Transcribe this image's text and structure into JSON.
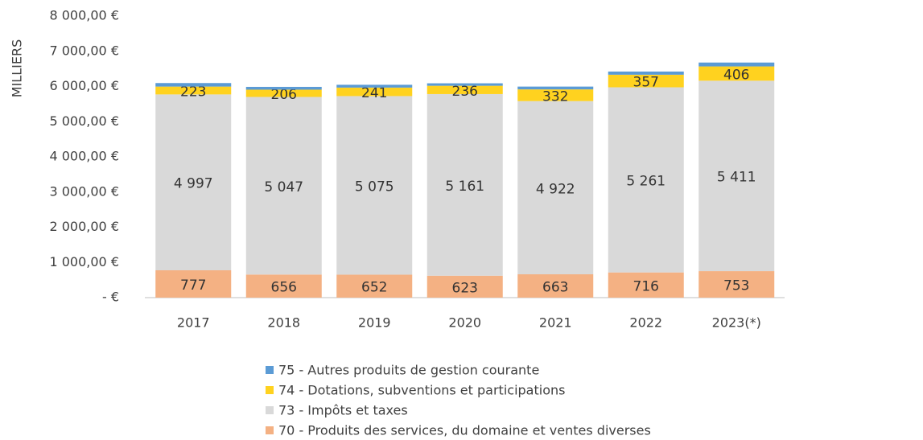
{
  "chart_data": {
    "type": "stacked-bar",
    "y_label": "MILLIERS",
    "categories": [
      "2017",
      "2018",
      "2019",
      "2020",
      "2021",
      "2022",
      "2023(*)"
    ],
    "series": [
      {
        "name": "70 - Produits des services, du domaine et ventes diverses",
        "color": "#f4b183",
        "values": [
          777,
          656,
          652,
          623,
          663,
          716,
          753
        ]
      },
      {
        "name": "73 - Impôts et taxes",
        "color": "#d9d9d9",
        "values": [
          4997,
          5047,
          5075,
          5161,
          4922,
          5261,
          5411
        ],
        "value_labels": [
          "4 997",
          "5 047",
          "5 075",
          "5 161",
          "4 922",
          "5 261",
          "5 411"
        ]
      },
      {
        "name": "74 - Dotations, subventions et participations",
        "color": "#ffd21f",
        "values": [
          223,
          206,
          241,
          236,
          332,
          357,
          406
        ]
      },
      {
        "name": "75 - Autres produits de gestion courante",
        "color": "#5b9bd5",
        "values": [
          100,
          80,
          80,
          70,
          80,
          90,
          110
        ],
        "show_labels": false
      }
    ],
    "ylim": [
      0,
      8000
    ],
    "yticks": [
      {
        "value": 0,
        "label": "-   €"
      },
      {
        "value": 1000,
        "label": "1 000,00 €"
      },
      {
        "value": 2000,
        "label": "2 000,00 €"
      },
      {
        "value": 3000,
        "label": "3 000,00 €"
      },
      {
        "value": 4000,
        "label": "4 000,00 €"
      },
      {
        "value": 5000,
        "label": "5 000,00 €"
      },
      {
        "value": 6000,
        "label": "6 000,00 €"
      },
      {
        "value": 7000,
        "label": "7 000,00 €"
      },
      {
        "value": 8000,
        "label": "8 000,00 €"
      }
    ],
    "grid": false
  }
}
